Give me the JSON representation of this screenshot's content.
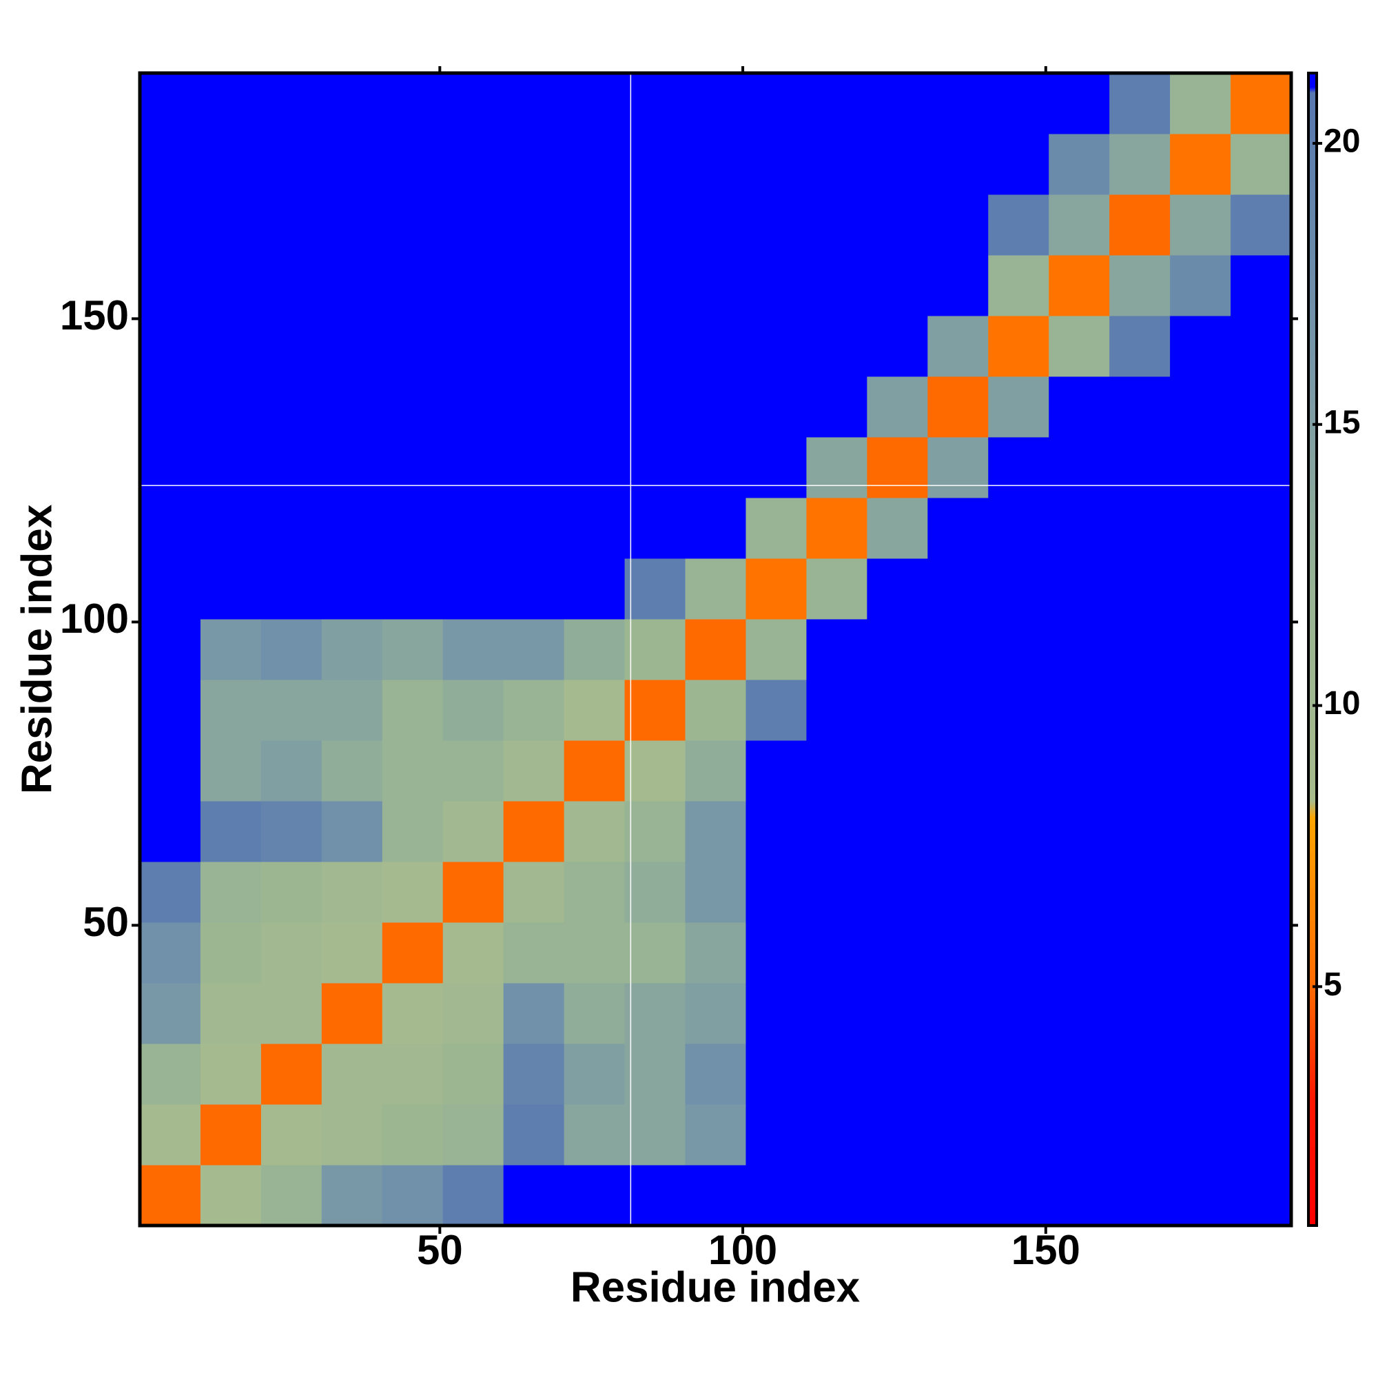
{
  "chart_data": {
    "type": "heatmap",
    "x_label": "Residue index",
    "y_label": "Residue index",
    "x_bins": [
      0.5,
      10.5,
      20.5,
      30.5,
      40.5,
      50.5,
      60.5,
      70.5,
      80.5,
      90.5,
      100.5,
      110.5,
      120.5,
      130.5,
      140.5,
      150.5,
      160.5,
      170.5,
      180.5,
      190.5
    ],
    "y_bins": [
      0.5,
      10.5,
      20.5,
      30.5,
      40.5,
      50.5,
      60.5,
      70.5,
      80.5,
      90.5,
      100.5,
      110.5,
      120.5,
      130.5,
      140.5,
      150.5,
      160.5,
      170.5,
      180.5,
      190.5
    ],
    "z": [
      [
        5,
        9,
        12,
        16,
        17,
        20,
        21,
        21,
        21,
        21,
        21,
        21,
        21,
        21,
        21,
        21,
        21,
        21,
        21
      ],
      [
        9,
        5,
        9,
        10,
        11,
        12,
        20,
        14,
        14,
        16,
        21,
        21,
        21,
        21,
        21,
        21,
        21,
        21,
        21
      ],
      [
        12,
        9,
        5,
        10,
        10,
        11,
        19,
        15,
        14,
        17,
        21,
        21,
        21,
        21,
        21,
        21,
        21,
        21,
        21
      ],
      [
        16,
        10,
        10,
        5,
        9,
        10,
        17,
        13,
        14,
        15,
        21,
        21,
        21,
        21,
        21,
        21,
        21,
        21,
        21
      ],
      [
        17,
        11,
        10,
        9,
        5,
        9,
        12,
        12,
        12,
        14,
        21,
        21,
        21,
        21,
        21,
        21,
        21,
        21,
        21
      ],
      [
        20,
        12,
        11,
        10,
        9,
        5,
        10,
        12,
        13,
        16,
        21,
        21,
        21,
        21,
        21,
        21,
        21,
        21,
        21
      ],
      [
        21,
        20,
        19,
        17,
        12,
        10,
        5,
        10,
        12,
        16,
        21,
        21,
        21,
        21,
        21,
        21,
        21,
        21,
        21
      ],
      [
        21,
        14,
        15,
        13,
        12,
        12,
        10,
        5,
        9,
        13,
        21,
        21,
        21,
        21,
        21,
        21,
        21,
        21,
        21
      ],
      [
        21,
        14,
        14,
        14,
        12,
        13,
        12,
        9,
        5,
        11,
        20,
        21,
        21,
        21,
        21,
        21,
        21,
        21,
        21
      ],
      [
        21,
        16,
        17,
        15,
        14,
        16,
        16,
        13,
        11,
        5,
        12,
        21,
        21,
        21,
        21,
        21,
        21,
        21,
        21
      ],
      [
        21,
        21,
        21,
        21,
        21,
        21,
        21,
        21,
        20,
        12,
        5.5,
        12,
        21,
        21,
        21,
        21,
        21,
        21,
        21
      ],
      [
        21,
        21,
        21,
        21,
        21,
        21,
        21,
        21,
        21,
        21,
        12,
        5.5,
        14,
        21,
        21,
        21,
        21,
        21,
        21
      ],
      [
        21,
        21,
        21,
        21,
        21,
        21,
        21,
        21,
        21,
        21,
        21,
        14,
        5,
        15,
        21,
        21,
        21,
        21,
        21
      ],
      [
        21,
        21,
        21,
        21,
        21,
        21,
        21,
        21,
        21,
        21,
        21,
        21,
        15,
        5,
        15,
        21,
        21,
        21,
        21
      ],
      [
        21,
        21,
        21,
        21,
        21,
        21,
        21,
        21,
        21,
        21,
        21,
        21,
        21,
        15,
        5.5,
        12,
        20,
        21,
        21
      ],
      [
        21,
        21,
        21,
        21,
        21,
        21,
        21,
        21,
        21,
        21,
        21,
        21,
        21,
        21,
        12,
        5.5,
        14,
        18,
        21
      ],
      [
        21,
        21,
        21,
        21,
        21,
        21,
        21,
        21,
        21,
        21,
        21,
        21,
        21,
        21,
        20,
        14,
        5,
        14,
        20
      ],
      [
        21,
        21,
        21,
        21,
        21,
        21,
        21,
        21,
        21,
        21,
        21,
        21,
        21,
        21,
        21,
        18,
        14,
        5.5,
        12
      ],
      [
        21,
        21,
        21,
        21,
        21,
        21,
        21,
        21,
        21,
        21,
        21,
        21,
        21,
        21,
        21,
        21,
        20,
        12,
        5.5
      ]
    ],
    "xlim": [
      0.5,
      190.5
    ],
    "ylim": [
      0.5,
      190.5
    ],
    "xticks": [
      50,
      100,
      150
    ],
    "yticks": [
      50,
      100,
      150
    ],
    "colorbar_lim": [
      0.75,
      21.25
    ],
    "colorbar_ticks": [
      5,
      10,
      15,
      20
    ],
    "colorscale": [
      [
        0.75,
        "#ff0000"
      ],
      [
        3,
        "#ff1800"
      ],
      [
        5,
        "#ff6a00"
      ],
      [
        8,
        "#ffa500"
      ],
      [
        8.3,
        "#a8bc8c"
      ],
      [
        12,
        "#98b494"
      ],
      [
        16,
        "#7898a8"
      ],
      [
        20.9,
        "#5878b0"
      ],
      [
        21,
        "#0000ff"
      ]
    ],
    "reference_lines": {
      "x": 81.5,
      "y": 122.5
    }
  }
}
